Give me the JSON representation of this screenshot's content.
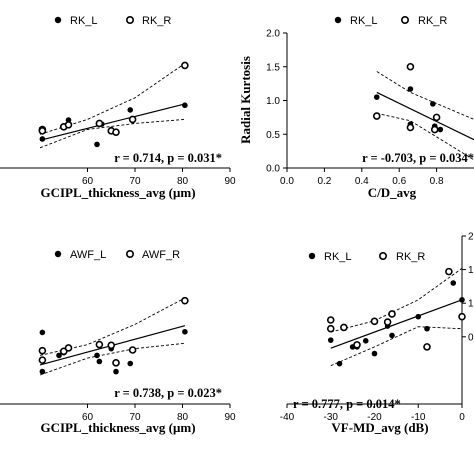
{
  "chart_data": [
    {
      "id": "tl",
      "type": "scatter",
      "xlim": [
        50,
        90
      ],
      "ylim": [
        0,
        2.0
      ],
      "x_ticks": [
        "60",
        "70",
        "80",
        "90"
      ],
      "y_ticks": [],
      "xlabel": "GCIPL_thickness_avg (μm)",
      "ylabel": "",
      "annotation": "r = 0.714, p = 0.031*",
      "legend_position": "top",
      "series": [
        {
          "name": "RK_L",
          "marker": "filled",
          "points": [
            [
              50.5,
              0.56
            ],
            [
              50.5,
              0.43
            ],
            [
              55,
              0.6
            ],
            [
              56,
              0.71
            ],
            [
              62,
              0.35
            ],
            [
              63,
              0.65
            ],
            [
              65,
              0.57
            ],
            [
              69,
              0.86
            ],
            [
              80.5,
              0.93
            ]
          ]
        },
        {
          "name": "RK_R",
          "marker": "open",
          "points": [
            [
              50.5,
              0.57
            ],
            [
              50.5,
              0.55
            ],
            [
              55,
              0.61
            ],
            [
              56,
              0.64
            ],
            [
              62.5,
              0.66
            ],
            [
              65,
              0.55
            ],
            [
              66,
              0.53
            ],
            [
              69.5,
              0.72
            ],
            [
              80.5,
              1.52
            ]
          ]
        }
      ],
      "fit": {
        "line": [
          [
            50,
            0.41
          ],
          [
            80.5,
            0.95
          ]
        ],
        "ci_upper": [
          [
            50,
            0.5
          ],
          [
            60,
            0.72
          ],
          [
            70,
            1.04
          ],
          [
            80.5,
            1.55
          ]
        ],
        "ci_lower": [
          [
            50,
            0.3
          ],
          [
            60,
            0.57
          ],
          [
            70,
            0.66
          ],
          [
            80.5,
            0.72
          ]
        ]
      }
    },
    {
      "id": "tr",
      "type": "scatter",
      "xlim": [
        0,
        1.0
      ],
      "ylim": [
        0,
        2.0
      ],
      "x_ticks": [
        "0.0",
        "0.2",
        "0.4",
        "0.6",
        "0.8"
      ],
      "y_ticks": [
        "0.0",
        "0.5",
        "1.0",
        "1.5",
        "2.0"
      ],
      "xlabel": "C/D_avg",
      "ylabel": "Radial Kurtosis",
      "annotation": "r = -0.703, p = 0.034*",
      "legend_position": "top",
      "series": [
        {
          "name": "RK_L",
          "marker": "filled",
          "points": [
            [
              0.48,
              1.05
            ],
            [
              0.66,
              1.17
            ],
            [
              0.66,
              0.65
            ],
            [
              0.78,
              0.95
            ],
            [
              0.79,
              0.62
            ],
            [
              0.82,
              0.57
            ]
          ]
        },
        {
          "name": "RK_R",
          "marker": "open",
          "points": [
            [
              0.48,
              0.77
            ],
            [
              0.66,
              1.5
            ],
            [
              0.66,
              0.6
            ],
            [
              0.79,
              0.57
            ],
            [
              0.8,
              0.75
            ]
          ]
        }
      ],
      "fit": {
        "line": [
          [
            0.48,
            1.12
          ],
          [
            1.0,
            0.42
          ]
        ],
        "ci_upper": [
          [
            0.48,
            1.43
          ],
          [
            0.66,
            1.12
          ],
          [
            1.0,
            0.72
          ]
        ],
        "ci_lower": [
          [
            0.48,
            0.81
          ],
          [
            0.66,
            0.7
          ],
          [
            1.0,
            0.12
          ]
        ]
      }
    },
    {
      "id": "bl",
      "type": "scatter",
      "xlim": [
        50,
        90
      ],
      "ylim": [
        0,
        2.0
      ],
      "x_ticks": [
        "60",
        "70",
        "80",
        "90"
      ],
      "y_ticks": [],
      "xlabel": "GCIPL_thickness_avg (μm)",
      "ylabel": "",
      "annotation": "r = 0.738, p = 0.023*",
      "legend_position": "top",
      "series": [
        {
          "name": "AWF_L",
          "marker": "filled",
          "points": [
            [
              50.5,
              1.06
            ],
            [
              50.5,
              0.48
            ],
            [
              54,
              0.72
            ],
            [
              55,
              0.76
            ],
            [
              62,
              0.72
            ],
            [
              62.5,
              0.63
            ],
            [
              65,
              0.82
            ],
            [
              66,
              0.48
            ],
            [
              69,
              0.6
            ],
            [
              80.5,
              1.07
            ]
          ]
        },
        {
          "name": "AWF_R",
          "marker": "open",
          "points": [
            [
              50.5,
              0.79
            ],
            [
              50.5,
              0.65
            ],
            [
              55,
              0.78
            ],
            [
              56,
              0.83
            ],
            [
              62.5,
              0.88
            ],
            [
              65,
              0.87
            ],
            [
              66,
              0.61
            ],
            [
              69.5,
              0.8
            ],
            [
              80.5,
              1.53
            ]
          ]
        }
      ],
      "fit": {
        "line": [
          [
            50,
            0.58
          ],
          [
            80.5,
            1.16
          ]
        ],
        "ci_upper": [
          [
            50,
            0.72
          ],
          [
            60,
            0.88
          ],
          [
            70,
            1.18
          ],
          [
            80.5,
            1.57
          ]
        ],
        "ci_lower": [
          [
            50,
            0.43
          ],
          [
            60,
            0.68
          ],
          [
            70,
            0.82
          ],
          [
            80.5,
            0.9
          ]
        ]
      }
    },
    {
      "id": "br",
      "type": "scatter",
      "xlim": [
        -40,
        0
      ],
      "ylim": [
        -0.5,
        2.0
      ],
      "x_ticks": [
        "-40",
        "-30",
        "-20",
        "-10",
        "0"
      ],
      "y_ticks_right": [
        "2",
        "1",
        "1",
        "0"
      ],
      "xlabel": "VF-MD_avg (dB)",
      "ylabel": "",
      "annotation": "r = 0.777, p = 0.014*",
      "legend_position": "top",
      "series": [
        {
          "name": "RK_L",
          "marker": "filled",
          "points": [
            [
              -30,
              0.45
            ],
            [
              -28,
              0.1
            ],
            [
              -25,
              0.35
            ],
            [
              -24,
              0.35
            ],
            [
              -22,
              0.44
            ],
            [
              -20,
              0.25
            ],
            [
              -17,
              0.66
            ],
            [
              -16,
              0.52
            ],
            [
              -10,
              0.8
            ],
            [
              -8,
              0.62
            ],
            [
              -2,
              1.3
            ],
            [
              0,
              1.05
            ]
          ]
        },
        {
          "name": "RK_R",
          "marker": "open",
          "points": [
            [
              -30,
              0.75
            ],
            [
              -30,
              0.62
            ],
            [
              -27,
              0.64
            ],
            [
              -24,
              0.38
            ],
            [
              -20,
              0.73
            ],
            [
              -17,
              0.72
            ],
            [
              -16,
              0.84
            ],
            [
              -8,
              0.35
            ],
            [
              -3,
              1.47
            ],
            [
              0,
              0.8
            ]
          ]
        }
      ],
      "fit": {
        "line": [
          [
            -30,
            0.33
          ],
          [
            0,
            1.05
          ]
        ],
        "ci_upper": [
          [
            -30,
            0.57
          ],
          [
            -20,
            0.74
          ],
          [
            -10,
            1.05
          ],
          [
            0,
            1.52
          ]
        ],
        "ci_lower": [
          [
            -30,
            0.07
          ],
          [
            -20,
            0.35
          ],
          [
            -10,
            0.65
          ],
          [
            0,
            0.62
          ]
        ]
      }
    }
  ]
}
